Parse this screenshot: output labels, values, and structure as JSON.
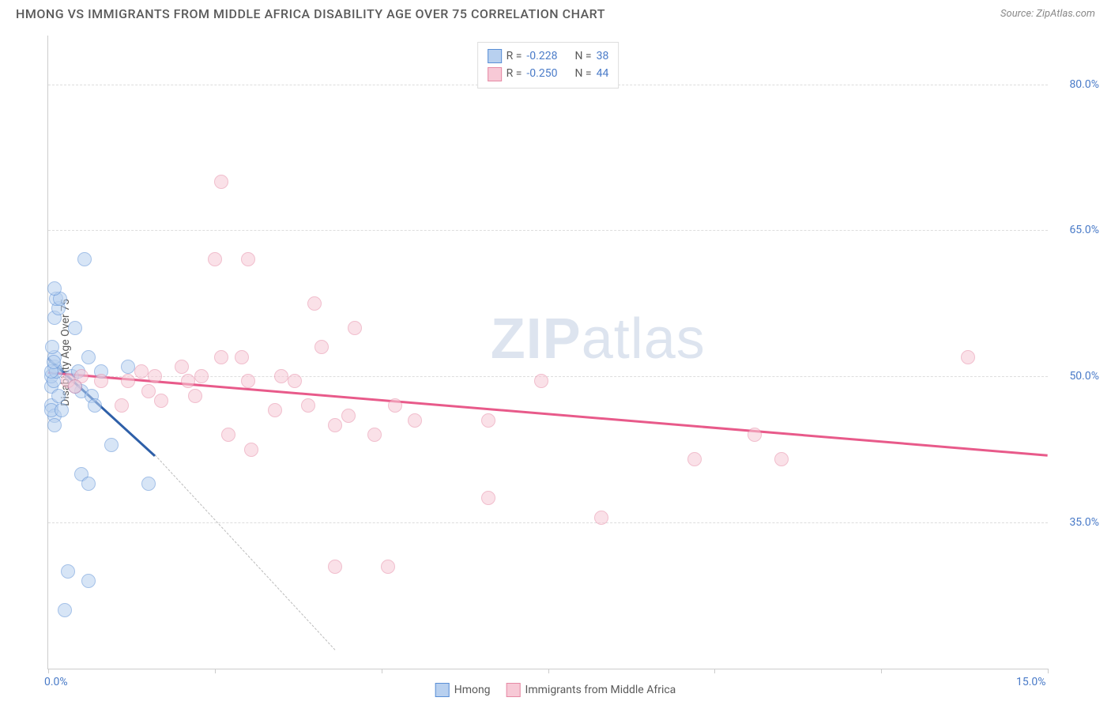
{
  "title": "HMONG VS IMMIGRANTS FROM MIDDLE AFRICA DISABILITY AGE OVER 75 CORRELATION CHART",
  "source": "Source: ZipAtlas.com",
  "watermark_a": "ZIP",
  "watermark_b": "atlas",
  "y_axis_label": "Disability Age Over 75",
  "chart": {
    "type": "scatter",
    "background_color": "#ffffff",
    "grid_color": "#dddddd",
    "axis_color": "#cccccc",
    "xlim": [
      0,
      15
    ],
    "ylim": [
      20,
      85
    ],
    "x_ticks": [
      0,
      2.5,
      5,
      7.5,
      10,
      12.5,
      15
    ],
    "x_tick_labels": {
      "0": "0.0%",
      "15": "15.0%"
    },
    "y_gridlines": [
      35,
      50,
      65,
      80
    ],
    "y_tick_labels": {
      "35": "35.0%",
      "50": "50.0%",
      "65": "65.0%",
      "80": "80.0%"
    },
    "point_radius": 9,
    "point_opacity": 0.55,
    "series": [
      {
        "name": "Hmong",
        "color_fill": "#b8d0ef",
        "color_stroke": "#5a8fd6",
        "r_value": "-0.228",
        "n_value": "38",
        "trend": {
          "x1": 0,
          "y1": 52,
          "x2": 1.6,
          "y2": 42,
          "color": "#2e5fa8",
          "width": 2.5
        },
        "trend_ext": {
          "x1": 1.6,
          "y1": 42,
          "x2": 4.3,
          "y2": 22
        },
        "points": [
          [
            0.05,
            49
          ],
          [
            0.05,
            50
          ],
          [
            0.1,
            51
          ],
          [
            0.1,
            52
          ],
          [
            0.06,
            53
          ],
          [
            0.1,
            56
          ],
          [
            0.15,
            57
          ],
          [
            0.12,
            58
          ],
          [
            0.18,
            58
          ],
          [
            0.1,
            59
          ],
          [
            0.05,
            47
          ],
          [
            0.1,
            46
          ],
          [
            0.05,
            46.5
          ],
          [
            0.15,
            48
          ],
          [
            0.08,
            49.5
          ],
          [
            0.12,
            50.5
          ],
          [
            0.05,
            50.5
          ],
          [
            0.55,
            62
          ],
          [
            0.4,
            55
          ],
          [
            0.6,
            52
          ],
          [
            0.35,
            50
          ],
          [
            0.45,
            50.5
          ],
          [
            0.5,
            48.5
          ],
          [
            0.65,
            48
          ],
          [
            0.8,
            50.5
          ],
          [
            0.7,
            47
          ],
          [
            0.95,
            43
          ],
          [
            1.5,
            39
          ],
          [
            0.5,
            40
          ],
          [
            0.6,
            39
          ],
          [
            0.3,
            30
          ],
          [
            0.6,
            29
          ],
          [
            0.25,
            26
          ],
          [
            0.1,
            45
          ],
          [
            0.2,
            46.5
          ],
          [
            0.08,
            51.5
          ],
          [
            0.4,
            49
          ],
          [
            1.2,
            51
          ]
        ]
      },
      {
        "name": "Immigrants from Middle Africa",
        "color_fill": "#f7c9d6",
        "color_stroke": "#e68aa5",
        "r_value": "-0.250",
        "n_value": "44",
        "trend": {
          "x1": 0,
          "y1": 50.5,
          "x2": 15,
          "y2": 42,
          "color": "#e85a8a",
          "width": 2.5
        },
        "points": [
          [
            0.3,
            49.5
          ],
          [
            0.5,
            50
          ],
          [
            0.4,
            49
          ],
          [
            0.8,
            49.5
          ],
          [
            1.1,
            47
          ],
          [
            1.2,
            49.5
          ],
          [
            1.4,
            50.5
          ],
          [
            1.5,
            48.5
          ],
          [
            1.6,
            50
          ],
          [
            1.7,
            47.5
          ],
          [
            2.0,
            51
          ],
          [
            2.1,
            49.5
          ],
          [
            2.2,
            48
          ],
          [
            2.5,
            62
          ],
          [
            2.6,
            70
          ],
          [
            2.6,
            52
          ],
          [
            2.3,
            50
          ],
          [
            2.7,
            44
          ],
          [
            3.0,
            49.5
          ],
          [
            3.0,
            62
          ],
          [
            3.05,
            42.5
          ],
          [
            3.4,
            46.5
          ],
          [
            3.5,
            50
          ],
          [
            3.7,
            49.5
          ],
          [
            3.9,
            47
          ],
          [
            4.0,
            57.5
          ],
          [
            4.1,
            53
          ],
          [
            4.3,
            45
          ],
          [
            4.3,
            30.5
          ],
          [
            4.5,
            46
          ],
          [
            4.6,
            55
          ],
          [
            4.9,
            44
          ],
          [
            5.1,
            30.5
          ],
          [
            5.2,
            47
          ],
          [
            5.5,
            45.5
          ],
          [
            6.6,
            37.5
          ],
          [
            6.6,
            45.5
          ],
          [
            7.4,
            49.5
          ],
          [
            8.3,
            35.5
          ],
          [
            9.7,
            41.5
          ],
          [
            10.6,
            44
          ],
          [
            11.0,
            41.5
          ],
          [
            13.8,
            52
          ],
          [
            2.9,
            52
          ]
        ]
      }
    ]
  },
  "legend_top_labels": {
    "R": "R =",
    "N": "N ="
  },
  "legend_bottom": [
    "Hmong",
    "Immigrants from Middle Africa"
  ]
}
